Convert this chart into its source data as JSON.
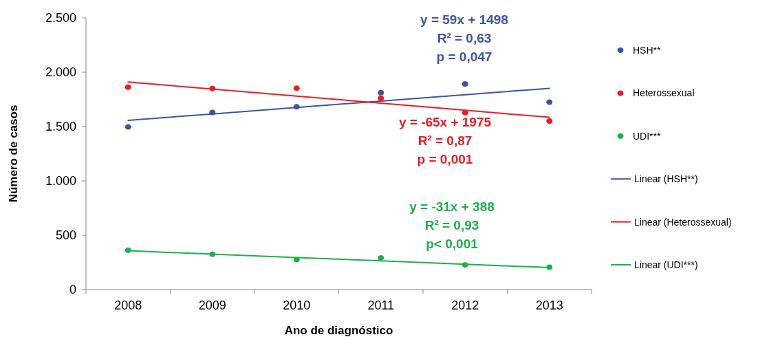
{
  "chart_data": {
    "type": "scatter",
    "xlabel": "Ano de diagnóstico",
    "ylabel": "Número de casos",
    "categories": [
      "2008",
      "2009",
      "2010",
      "2011",
      "2012",
      "2013"
    ],
    "ylim": [
      0,
      2500
    ],
    "yticks": [
      {
        "value": 0,
        "label": "0"
      },
      {
        "value": 500,
        "label": "500"
      },
      {
        "value": 1000,
        "label": "1.000"
      },
      {
        "value": 1500,
        "label": "1.500"
      },
      {
        "value": 2000,
        "label": "2.000"
      },
      {
        "value": 2500,
        "label": "2.500"
      }
    ],
    "series": [
      {
        "name": "HSH**",
        "color": "#3a55a4",
        "marker": "circle",
        "values": [
          1497,
          1629,
          1682,
          1811,
          1892,
          1725
        ]
      },
      {
        "name": "Heterossexual",
        "color": "#ed1c24",
        "marker": "circle",
        "values": [
          1863,
          1850,
          1853,
          1760,
          1627,
          1550
        ]
      },
      {
        "name": "UDI***",
        "color": "#1db04b",
        "marker": "circle",
        "values": [
          362,
          325,
          276,
          291,
          227,
          206
        ]
      },
      {
        "name": "Linear (HSH**)",
        "type": "line",
        "color": "#3a55a4",
        "values": [
          1557,
          1616,
          1675,
          1734,
          1793,
          1852
        ]
      },
      {
        "name": "Linear (Heterossexual)",
        "type": "line",
        "color": "#ed1c24",
        "values": [
          1910,
          1845,
          1780,
          1715,
          1650,
          1585
        ]
      },
      {
        "name": "Linear (UDI***)",
        "type": "line",
        "color": "#1db04b",
        "values": [
          357,
          326,
          295,
          264,
          233,
          202
        ]
      }
    ],
    "annotations": [
      "y = 59x + 1498",
      "R² = 0,63",
      "p = 0,047",
      "y = -65x + 1975",
      "R² = 0,87",
      "p = 0,001",
      "y = -31x + 388",
      "R² = 0,93",
      "p< 0,001"
    ],
    "legend": "right"
  }
}
